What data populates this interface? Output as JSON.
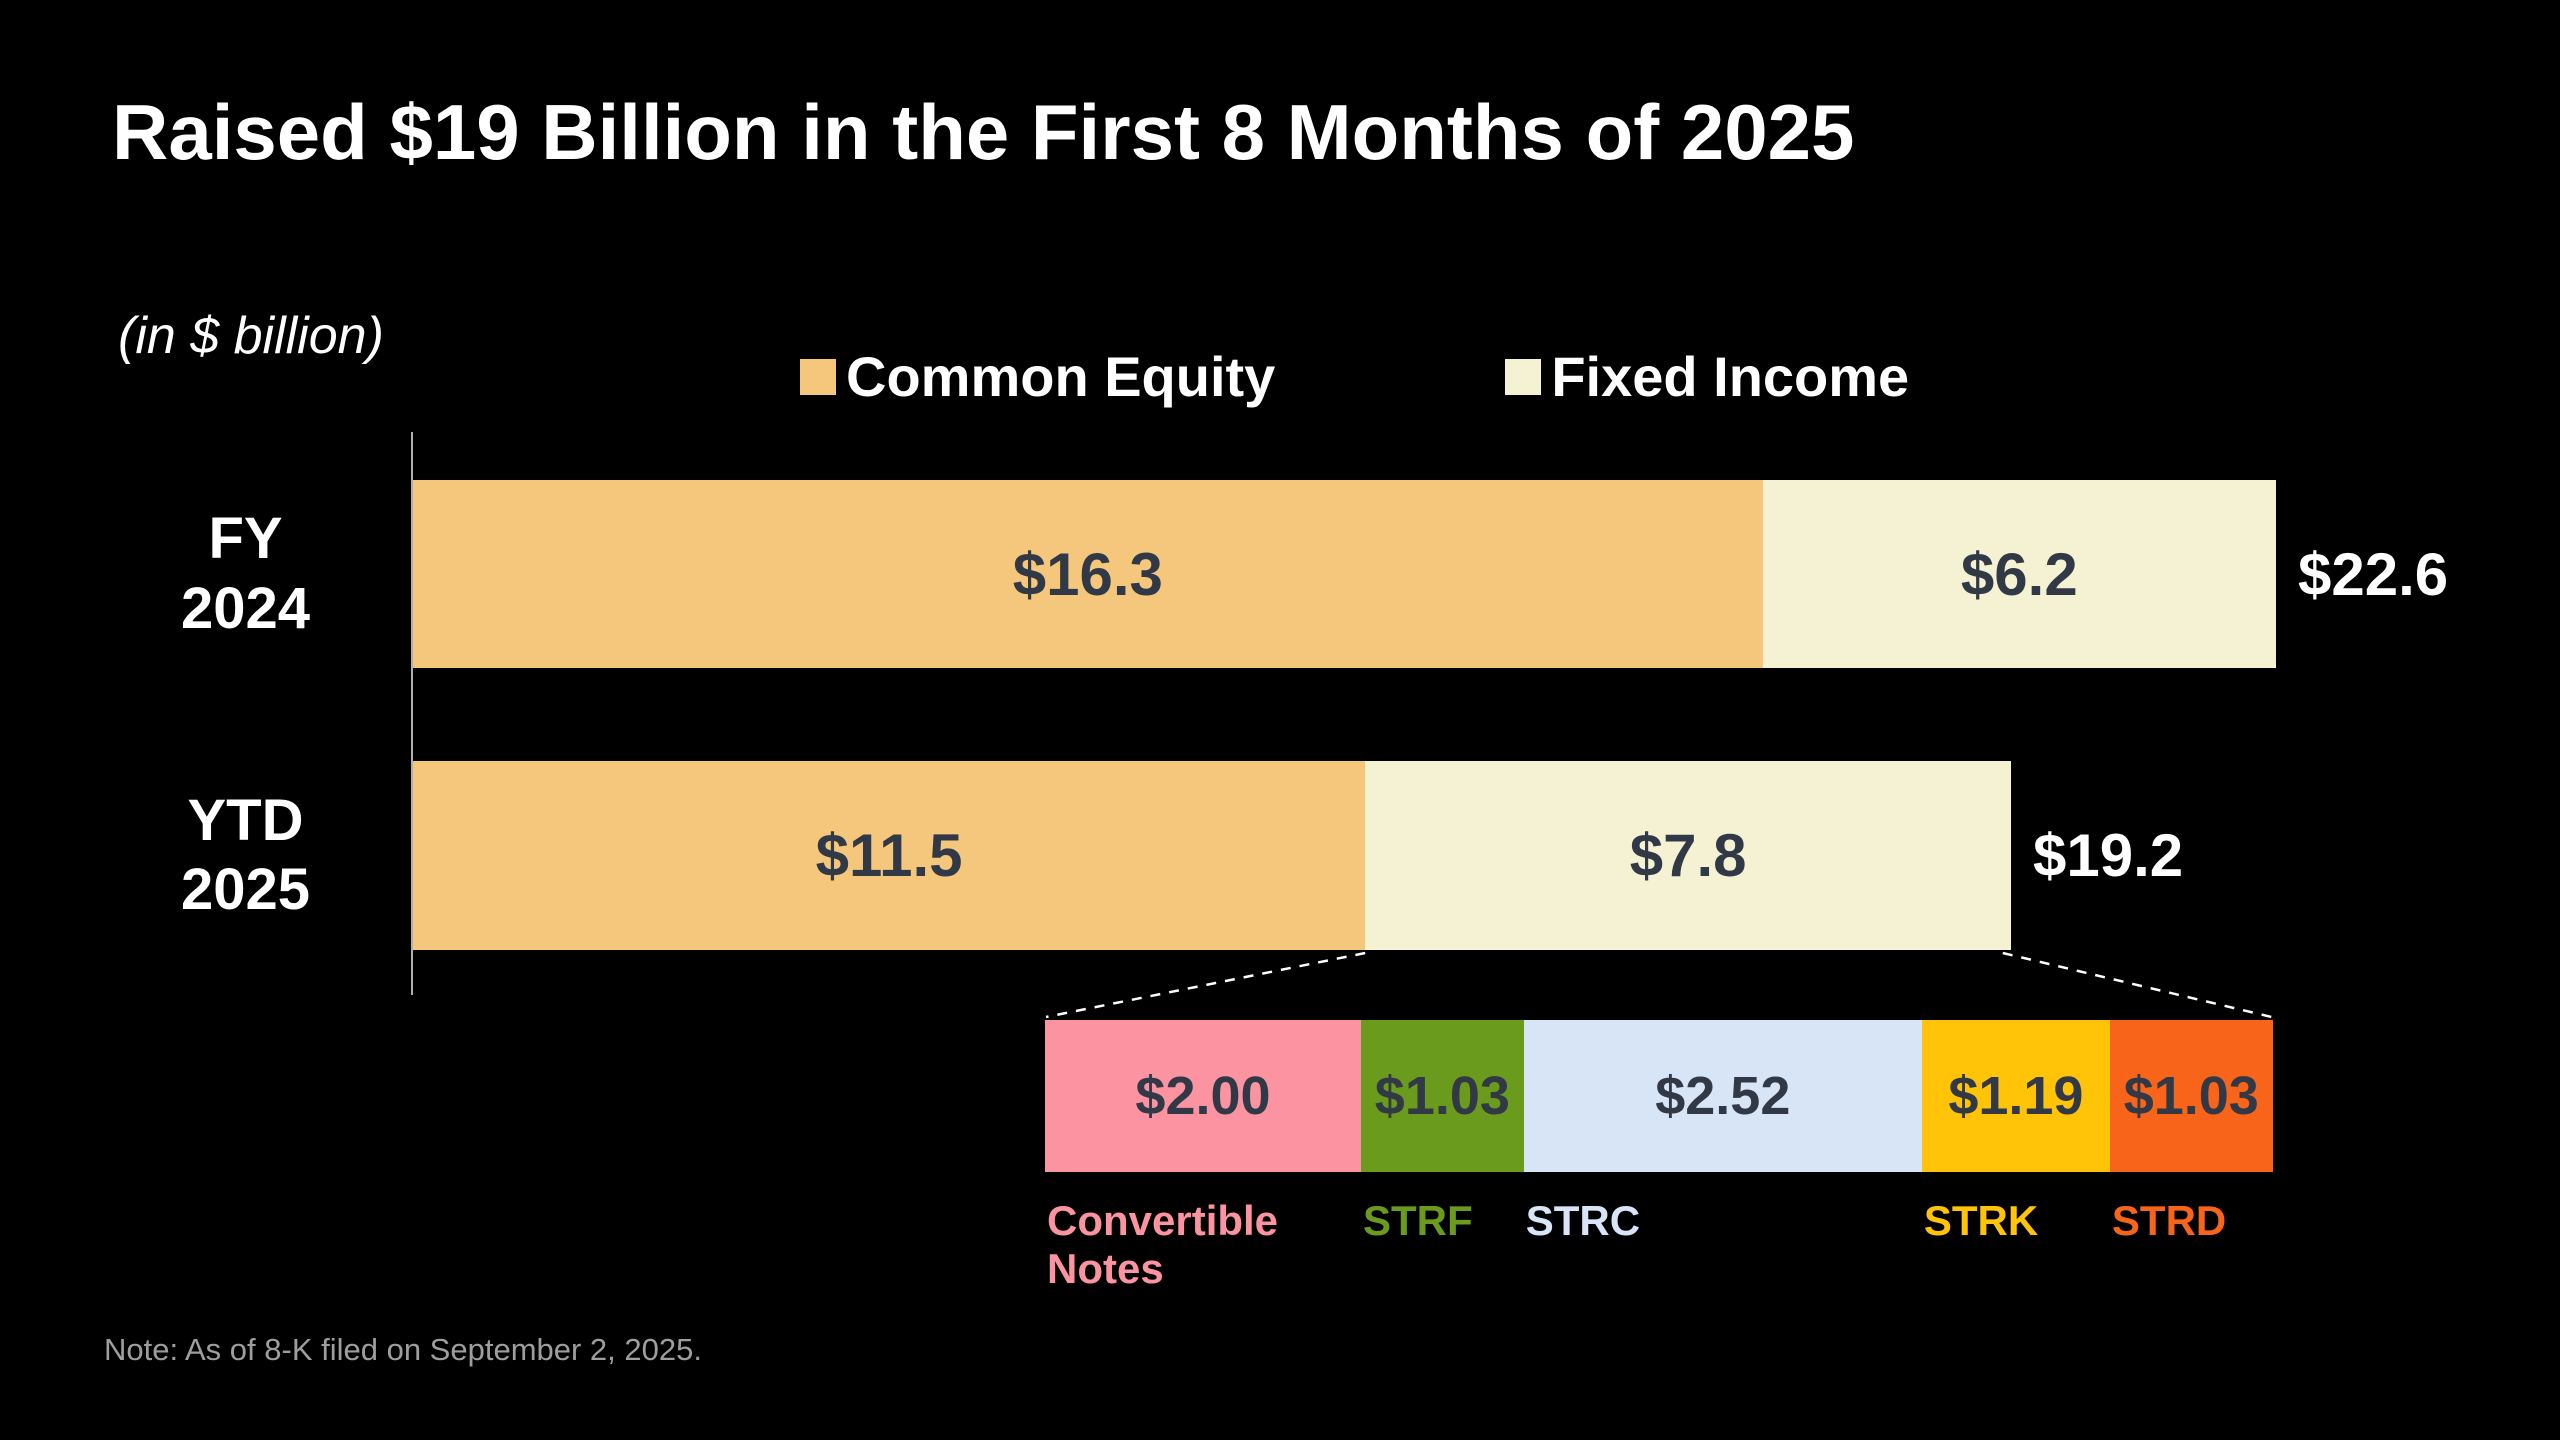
{
  "slide": {
    "title": "Raised $19 Billion in the First 8 Months of 2025",
    "axis_note": "(in $ billion)",
    "footnote": "Note: As of 8-K filed on September 2, 2025."
  },
  "colors": {
    "background": "#000000",
    "common_equity": "#F5C77D",
    "fixed_income": "#F5F2D3",
    "value_text": "#313947",
    "total_text": "#FFFFFF",
    "axis_line": "#B0B0B0",
    "connector": "#FFFFFF",
    "footnote_text": "#9E9E9E"
  },
  "legend": [
    {
      "label": "Common Equity",
      "color": "#F5C77D"
    },
    {
      "label": "Fixed Income",
      "color": "#F5F2D3"
    }
  ],
  "chart_data": {
    "type": "bar",
    "orientation": "horizontal",
    "stacked": true,
    "unit": "$ billion",
    "title": "Raised $19 Billion in the First 8 Months of 2025",
    "categories": [
      "FY 2024",
      "YTD 2025"
    ],
    "series": [
      {
        "name": "Common Equity",
        "color": "#F5C77D",
        "values": [
          16.3,
          11.5
        ],
        "values_display": [
          "$16.3",
          "$11.5"
        ]
      },
      {
        "name": "Fixed Income",
        "color": "#F5F2D3",
        "values": [
          6.2,
          7.8
        ],
        "values_display": [
          "$6.2",
          "$7.8"
        ]
      }
    ],
    "totals": [
      22.6,
      19.2
    ],
    "totals_display": [
      "$22.6",
      "$19.2"
    ],
    "breakdown": {
      "of": "YTD 2025 Fixed Income",
      "segments": [
        {
          "label": "Convertible Notes",
          "value": 2.0,
          "value_display": "$2.00",
          "color": "#FB93A1"
        },
        {
          "label": "STRF",
          "value": 1.03,
          "value_display": "$1.03",
          "color": "#6B9B1D"
        },
        {
          "label": "STRC",
          "value": 2.52,
          "value_display": "$2.52",
          "color": "#D8E5F6"
        },
        {
          "label": "STRK",
          "value": 1.19,
          "value_display": "$1.19",
          "color": "#FFC408"
        },
        {
          "label": "STRD",
          "value": 1.03,
          "value_display": "$1.03",
          "color": "#F8651A"
        }
      ]
    }
  }
}
